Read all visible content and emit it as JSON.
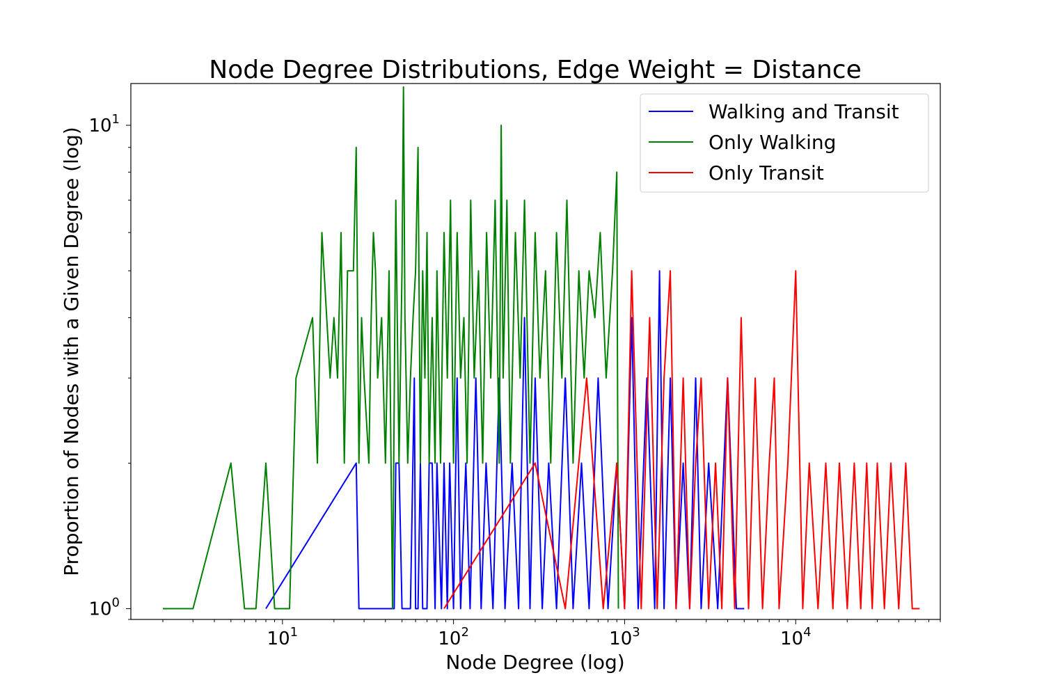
{
  "chart_data": {
    "type": "line",
    "title": "Node Degree Distributions, Edge Weight = Distance",
    "xlabel": "Node Degree (log)",
    "ylabel": "Proportion of Nodes with a Given Degree (log)",
    "xscale": "log",
    "yscale": "log",
    "xlim": [
      1.3,
      70000
    ],
    "ylim": [
      0.95,
      12.2
    ],
    "x_ticks": [
      {
        "value": 10,
        "base": "10",
        "exp": "1"
      },
      {
        "value": 100,
        "base": "10",
        "exp": "2"
      },
      {
        "value": 1000,
        "base": "10",
        "exp": "3"
      },
      {
        "value": 10000,
        "base": "10",
        "exp": "4"
      }
    ],
    "y_ticks": [
      {
        "value": 1,
        "base": "10",
        "exp": "0"
      },
      {
        "value": 10,
        "base": "10",
        "exp": "1"
      }
    ],
    "grid": false,
    "legend_position": "top-right",
    "series": [
      {
        "name": "Walking and Transit",
        "color": "#0000ff",
        "x": [
          8,
          27,
          28,
          29,
          45,
          46,
          48,
          50,
          52,
          56,
          59,
          60,
          62,
          64,
          66,
          70,
          72,
          75,
          78,
          80,
          85,
          88,
          92,
          95,
          100,
          105,
          110,
          118,
          125,
          135,
          145,
          155,
          170,
          185,
          200,
          220,
          240,
          260,
          280,
          300,
          330,
          360,
          400,
          450,
          500,
          560,
          620,
          700,
          800,
          900,
          1000,
          1100,
          1200,
          1350,
          1500,
          1600,
          1700,
          1850,
          2000,
          2200,
          2400,
          2600,
          2800,
          3100,
          3500,
          4000,
          4500,
          5000
        ],
        "y": [
          1,
          2,
          1,
          1,
          1,
          2,
          2,
          1,
          1,
          1,
          3,
          1,
          1,
          2,
          1,
          1,
          2,
          2,
          1,
          2,
          1,
          2,
          1,
          2,
          1,
          3,
          1,
          2,
          1,
          3,
          1,
          2,
          1,
          3,
          1,
          2,
          1,
          4,
          1,
          3,
          1,
          2,
          1,
          3,
          1,
          2,
          1,
          3,
          1,
          2,
          1,
          4,
          1,
          3,
          1,
          5,
          1,
          3,
          1,
          2,
          1,
          3,
          1,
          2,
          1,
          3,
          1,
          1
        ]
      },
      {
        "name": "Only Walking",
        "color": "#008000",
        "x": [
          2,
          3,
          5,
          6,
          7,
          8,
          9,
          11,
          12,
          15,
          16,
          17,
          19,
          20,
          21,
          22,
          23,
          24,
          26,
          27,
          28,
          29,
          30,
          32,
          33,
          34,
          35,
          36,
          38,
          40,
          42,
          44,
          46,
          48,
          50,
          51,
          52,
          54,
          56,
          58,
          60,
          62,
          64,
          66,
          68,
          70,
          72,
          75,
          78,
          80,
          84,
          88,
          92,
          96,
          100,
          105,
          110,
          115,
          120,
          126,
          132,
          140,
          148,
          156,
          165,
          175,
          185,
          190,
          195,
          205,
          215,
          230,
          245,
          260,
          280,
          300,
          320,
          345,
          370,
          400,
          430,
          460,
          500,
          540,
          580,
          620,
          670,
          720,
          780,
          850,
          900,
          920
        ],
        "y": [
          1,
          1,
          2,
          1,
          1,
          2,
          1,
          1,
          3,
          4,
          2,
          6,
          3,
          4,
          3,
          6,
          2,
          5,
          5,
          9,
          2,
          4,
          3,
          2,
          4,
          6,
          5,
          3,
          4,
          2,
          5,
          1,
          7,
          2,
          5,
          12,
          4,
          2,
          3,
          4,
          5,
          9,
          2,
          5,
          3,
          6,
          2,
          4,
          2,
          5,
          2,
          6,
          3,
          7,
          2,
          6,
          3,
          4,
          2,
          7,
          3,
          5,
          2,
          6,
          3,
          7,
          2,
          10,
          3,
          7,
          2,
          6,
          3,
          7,
          2,
          6,
          3,
          5,
          2,
          6,
          3,
          7,
          2,
          5,
          3,
          5,
          4,
          6,
          3,
          5,
          8,
          1
        ]
      },
      {
        "name": "Only Transit",
        "color": "#ff0000",
        "x": [
          88,
          300,
          450,
          600,
          750,
          900,
          1000,
          1100,
          1250,
          1400,
          1550,
          1700,
          1850,
          2000,
          2200,
          2400,
          2600,
          2800,
          3100,
          3400,
          3700,
          4000,
          4400,
          4800,
          5300,
          5800,
          6400,
          7000,
          7500,
          8000,
          9000,
          10000,
          11000,
          12000,
          13500,
          15000,
          16500,
          18000,
          20000,
          22000,
          24000,
          26000,
          28000,
          30000,
          33000,
          36000,
          40000,
          44000,
          48000,
          53000
        ],
        "y": [
          1,
          2,
          1,
          3,
          1,
          2,
          1,
          5,
          1,
          4,
          1,
          3,
          5,
          1,
          3,
          1,
          2,
          3,
          1,
          2,
          1,
          3,
          1,
          4,
          1,
          3,
          1,
          2,
          3,
          1,
          2,
          5,
          1,
          2,
          1,
          2,
          1,
          2,
          1,
          2,
          1,
          2,
          1,
          2,
          1,
          2,
          1,
          2,
          1,
          1
        ]
      }
    ]
  }
}
